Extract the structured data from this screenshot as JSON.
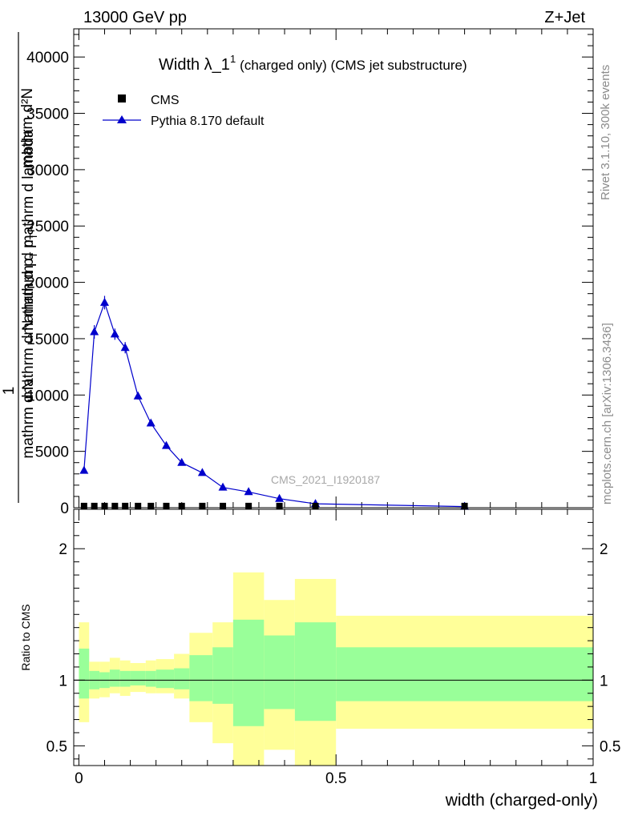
{
  "header": {
    "left": "13000 GeV pp",
    "right": "Z+Jet"
  },
  "title": {
    "main": "Width λ_1",
    "sup": "1",
    "sub": "(charged only) (CMS jet substructure)"
  },
  "side_labels": {
    "rivet": "Rivet 3.1.10,  300k events",
    "mcplots": "mcplots.cern.ch [arXiv:1306.3436]"
  },
  "watermark": "CMS_2021_I1920187",
  "legend": [
    {
      "label": "CMS",
      "marker": "square",
      "color": "#000000"
    },
    {
      "label": "Pythia 8.170 default",
      "marker": "triangle",
      "color": "#0000cc"
    }
  ],
  "ylabel_main": {
    "left_num": "1",
    "left_den": "mathrm d N",
    "frac_num": "mathrm d²N",
    "frac_den": "mathrm d p",
    "frac_den_sub": "T",
    "frac_den_tail": " mathrm d lambda",
    "frac_num2": "mathrm d N",
    "frac_num2_tail": "mathrm d p",
    "frac_num2_sub": "T"
  },
  "ylabel_ratio": "Ratio to CMS",
  "xlabel": "width (charged-only)",
  "chart_data": [
    {
      "type": "line",
      "panel": "main",
      "ylim": [
        0,
        42500
      ],
      "xlim": [
        -0.01,
        1.0
      ],
      "yticks": [
        0,
        5000,
        10000,
        15000,
        20000,
        25000,
        30000,
        35000,
        40000
      ],
      "ytick_labels": [
        "0",
        "5000",
        "10000",
        "15000",
        "20000",
        "25000",
        "30000",
        "35000",
        "40000"
      ],
      "series": [
        {
          "name": "CMS",
          "marker": "square",
          "x": [
            0.01,
            0.03,
            0.05,
            0.07,
            0.09,
            0.115,
            0.14,
            0.17,
            0.2,
            0.24,
            0.28,
            0.33,
            0.39,
            0.46,
            0.75
          ],
          "y": [
            150,
            150,
            150,
            150,
            150,
            150,
            150,
            150,
            150,
            150,
            150,
            150,
            150,
            150,
            150
          ]
        },
        {
          "name": "Pythia 8.170 default",
          "marker": "triangle",
          "color": "#0000cc",
          "x": [
            0.01,
            0.03,
            0.05,
            0.07,
            0.09,
            0.115,
            0.14,
            0.17,
            0.2,
            0.24,
            0.28,
            0.33,
            0.39,
            0.46,
            0.75
          ],
          "y": [
            3300,
            15600,
            18200,
            15400,
            14200,
            9900,
            7500,
            5500,
            4000,
            3100,
            1800,
            1400,
            800,
            350,
            100
          ],
          "yerr": [
            200,
            600,
            600,
            500,
            500,
            300,
            250,
            200,
            150,
            120,
            100,
            80,
            60,
            40,
            20
          ]
        }
      ]
    },
    {
      "type": "area",
      "panel": "ratio",
      "ylim": [
        0.35,
        2.3
      ],
      "xlim": [
        -0.01,
        1.0
      ],
      "yticks": [
        0.5,
        1,
        2
      ],
      "ytick_labels": [
        "0.5",
        "1",
        "2"
      ],
      "xticks": [
        0,
        0.5,
        1
      ],
      "xtick_labels": [
        "0",
        "0.5",
        "1"
      ],
      "bins": [
        {
          "x0": 0.0,
          "x1": 0.02,
          "g": [
            0.86,
            1.24
          ],
          "y": [
            0.68,
            1.44
          ]
        },
        {
          "x0": 0.02,
          "x1": 0.04,
          "g": [
            0.93,
            1.07
          ],
          "y": [
            0.86,
            1.14
          ]
        },
        {
          "x0": 0.04,
          "x1": 0.06,
          "g": [
            0.94,
            1.06
          ],
          "y": [
            0.87,
            1.14
          ]
        },
        {
          "x0": 0.06,
          "x1": 0.08,
          "g": [
            0.95,
            1.08
          ],
          "y": [
            0.9,
            1.17
          ]
        },
        {
          "x0": 0.08,
          "x1": 0.1,
          "g": [
            0.95,
            1.07
          ],
          "y": [
            0.88,
            1.15
          ]
        },
        {
          "x0": 0.1,
          "x1": 0.13,
          "g": [
            0.96,
            1.07
          ],
          "y": [
            0.91,
            1.13
          ]
        },
        {
          "x0": 0.13,
          "x1": 0.15,
          "g": [
            0.95,
            1.07
          ],
          "y": [
            0.9,
            1.15
          ]
        },
        {
          "x0": 0.15,
          "x1": 0.185,
          "g": [
            0.94,
            1.08
          ],
          "y": [
            0.9,
            1.16
          ]
        },
        {
          "x0": 0.185,
          "x1": 0.215,
          "g": [
            0.93,
            1.09
          ],
          "y": [
            0.86,
            1.2
          ]
        },
        {
          "x0": 0.215,
          "x1": 0.26,
          "g": [
            0.84,
            1.19
          ],
          "y": [
            0.68,
            1.36
          ]
        },
        {
          "x0": 0.26,
          "x1": 0.3,
          "g": [
            0.82,
            1.25
          ],
          "y": [
            0.52,
            1.44
          ]
        },
        {
          "x0": 0.3,
          "x1": 0.36,
          "g": [
            0.65,
            1.46
          ],
          "y": [
            0.27,
            1.82
          ]
        },
        {
          "x0": 0.36,
          "x1": 0.42,
          "g": [
            0.78,
            1.34
          ],
          "y": [
            0.47,
            1.61
          ]
        },
        {
          "x0": 0.42,
          "x1": 0.5,
          "g": [
            0.69,
            1.44
          ],
          "y": [
            0.2,
            1.77
          ]
        },
        {
          "x0": 0.5,
          "x1": 1.0,
          "g": [
            0.84,
            1.25
          ],
          "y": [
            0.63,
            1.49
          ]
        }
      ]
    }
  ]
}
